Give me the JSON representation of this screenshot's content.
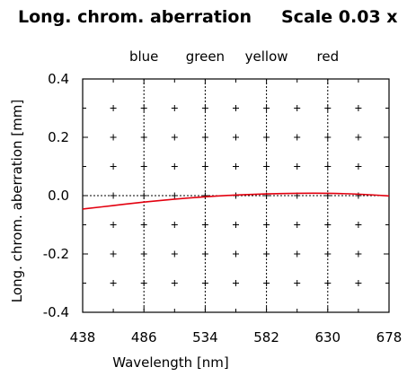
{
  "header": {
    "title": "Long. chrom. aberration",
    "scale_label": "Scale 0.03 x"
  },
  "chart_data": {
    "type": "line",
    "title": "Long. chrom. aberration",
    "xlabel": "Wavelength [nm]",
    "ylabel": "Long. chrom. aberration [mm]",
    "xlim": [
      438,
      678
    ],
    "ylim": [
      -0.4,
      0.4
    ],
    "x_ticks": [
      438,
      486,
      534,
      582,
      630,
      678
    ],
    "y_ticks": [
      -0.4,
      -0.2,
      0.0,
      0.2,
      0.4
    ],
    "y_tick_labels": [
      "-0.4",
      "-0.2",
      "0.0",
      "0.2",
      "0.4"
    ],
    "color_lines": [
      {
        "label": "blue",
        "x": 486
      },
      {
        "label": "green",
        "x": 534
      },
      {
        "label": "yellow",
        "x": 582
      },
      {
        "label": "red",
        "x": 630
      }
    ],
    "series": [
      {
        "color": "#e3000f",
        "x": [
          438,
          462,
          486,
          510,
          534,
          558,
          582,
          606,
          630,
          654,
          678
        ],
        "y": [
          -0.046,
          -0.034,
          -0.022,
          -0.012,
          -0.004,
          0.002,
          0.006,
          0.008,
          0.008,
          0.005,
          -0.001
        ]
      }
    ],
    "grid": "plus-markers"
  }
}
